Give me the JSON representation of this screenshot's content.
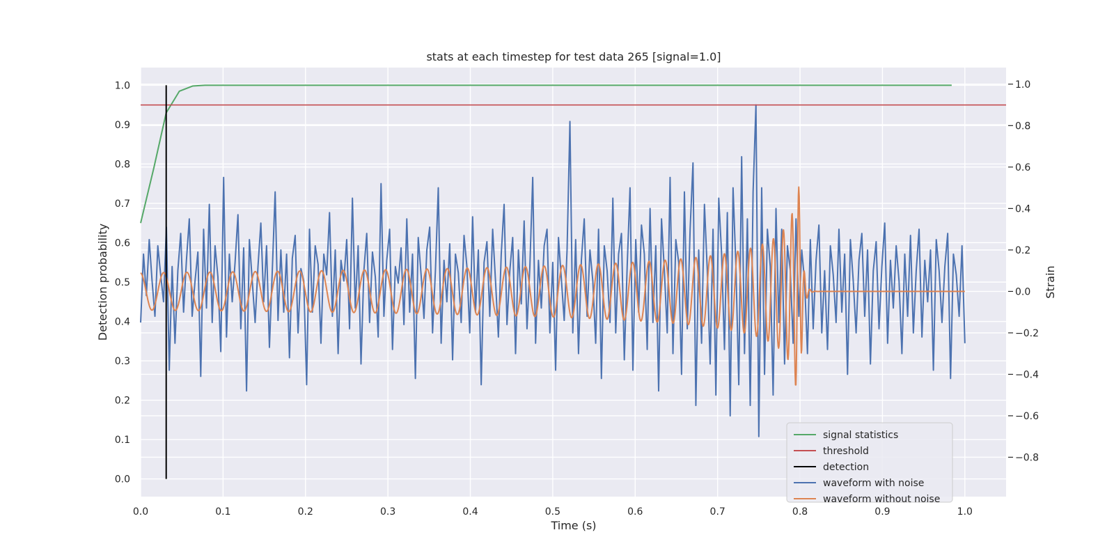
{
  "chart_data": {
    "type": "line",
    "title": "stats at each timestep for test data 265 [signal=1.0]",
    "xlabel": "Time (s)",
    "ylabel_left": "Detection probability",
    "ylabel_right": "Strain",
    "xlim": [
      0.0,
      1.05
    ],
    "ylim_left": [
      -0.045,
      1.045
    ],
    "ylim_right": [
      -0.99,
      1.08
    ],
    "x_ticks": [
      0.0,
      0.1,
      0.2,
      0.3,
      0.4,
      0.5,
      0.6,
      0.7,
      0.8,
      0.9,
      1.0
    ],
    "x_tick_labels": [
      "0.0",
      "0.1",
      "0.2",
      "0.3",
      "0.4",
      "0.5",
      "0.6",
      "0.7",
      "0.8",
      "0.9",
      "1.0"
    ],
    "y_ticks_left": [
      0.0,
      0.1,
      0.2,
      0.3,
      0.4,
      0.5,
      0.6,
      0.7,
      0.8,
      0.9,
      1.0
    ],
    "y_tick_labels_left": [
      "0.0",
      "0.1",
      "0.2",
      "0.3",
      "0.4",
      "0.5",
      "0.6",
      "0.7",
      "0.8",
      "0.9",
      "1.0"
    ],
    "y_ticks_right": [
      -0.8,
      -0.6,
      -0.4,
      -0.2,
      0.0,
      0.2,
      0.4,
      0.6,
      0.8,
      1.0
    ],
    "y_tick_labels_right": [
      "−0.8",
      "−0.6",
      "−0.4",
      "−0.2",
      "0.0",
      "0.2",
      "0.4",
      "0.6",
      "0.8",
      "1.0"
    ],
    "grid": true,
    "legend_position": "lower-right",
    "series": [
      {
        "name": "signal statistics",
        "axis": "left",
        "color": "#55a868",
        "x": [
          0.0,
          0.016,
          0.031,
          0.047,
          0.063,
          0.078,
          0.1,
          0.2,
          0.3,
          0.4,
          0.5,
          0.6,
          0.7,
          0.8,
          0.9,
          0.984
        ],
        "y": [
          0.65,
          0.79,
          0.93,
          0.985,
          0.998,
          1.0,
          1.0,
          1.0,
          1.0,
          1.0,
          1.0,
          1.0,
          1.0,
          1.0,
          1.0,
          1.0
        ]
      },
      {
        "name": "threshold",
        "axis": "left",
        "color": "#c44e52",
        "x": [
          0.0,
          1.05
        ],
        "y": [
          0.95,
          0.95
        ]
      },
      {
        "name": "detection",
        "axis": "left",
        "color": "#000000",
        "x": [
          0.031,
          0.031
        ],
        "y": [
          0.0,
          1.0
        ]
      },
      {
        "name": "waveform with noise",
        "axis": "right",
        "color": "#4c72b0",
        "x_range": [
          0.0,
          1.0
        ],
        "y": [
          -0.15,
          0.18,
          -0.02,
          0.25,
          0.05,
          -0.12,
          0.22,
          0.08,
          -0.05,
          0.31,
          -0.38,
          0.12,
          -0.25,
          0.1,
          0.28,
          -0.1,
          0.15,
          0.35,
          -0.12,
          0.05,
          0.19,
          -0.41,
          0.3,
          -0.08,
          0.42,
          -0.15,
          0.22,
          0.07,
          -0.29,
          0.55,
          -0.22,
          0.18,
          -0.05,
          0.14,
          0.37,
          -0.18,
          0.21,
          -0.48,
          0.25,
          0.05,
          -0.15,
          0.12,
          0.33,
          -0.05,
          0.22,
          -0.27,
          0.1,
          0.48,
          -0.14,
          0.2,
          -0.1,
          0.18,
          -0.32,
          0.16,
          0.27,
          -0.2,
          0.11,
          0.05,
          -0.45,
          0.3,
          -0.1,
          0.22,
          0.13,
          -0.25,
          0.18,
          0.08,
          0.38,
          -0.12,
          0.2,
          -0.3,
          0.15,
          0.05,
          0.25,
          -0.18,
          0.45,
          -0.08,
          0.22,
          -0.35,
          0.1,
          0.28,
          -0.15,
          0.19,
          0.07,
          -0.22,
          0.52,
          -0.12,
          0.15,
          0.3,
          -0.28,
          0.12,
          0.04,
          0.21,
          -0.16,
          0.35,
          -0.1,
          0.18,
          -0.42,
          0.26,
          0.08,
          -0.13,
          0.2,
          0.31,
          -0.2,
          0.1,
          0.5,
          -0.25,
          0.15,
          -0.05,
          0.23,
          -0.33,
          0.18,
          0.09,
          -0.15,
          0.27,
          0.12,
          -0.2,
          0.36,
          -0.1,
          0.2,
          -0.45,
          0.14,
          0.24,
          -0.12,
          0.3,
          0.05,
          -0.22,
          0.18,
          0.42,
          -0.16,
          0.1,
          0.26,
          -0.3,
          0.2,
          -0.06,
          0.34,
          -0.18,
          0.12,
          0.55,
          -0.25,
          0.15,
          -0.08,
          0.22,
          0.3,
          -0.2,
          0.14,
          -0.38,
          0.26,
          0.06,
          -0.14,
          0.2,
          0.82,
          -0.2,
          0.25,
          -0.3,
          0.15,
          0.35,
          -0.12,
          0.2,
          0.05,
          -0.25,
          0.3,
          -0.42,
          0.22,
          0.1,
          -0.15,
          0.45,
          -0.2,
          0.18,
          0.28,
          -0.33,
          0.12,
          0.5,
          -0.38,
          0.25,
          -0.1,
          0.32,
          0.18,
          -0.28,
          0.4,
          -0.15,
          0.22,
          -0.48,
          0.35,
          0.1,
          -0.2,
          0.55,
          -0.3,
          0.25,
          0.14,
          -0.4,
          0.48,
          -0.18,
          0.3,
          0.62,
          -0.55,
          0.2,
          -0.25,
          0.42,
          0.1,
          -0.35,
          0.3,
          -0.5,
          0.45,
          0.18,
          -0.28,
          0.38,
          -0.6,
          0.5,
          0.12,
          -0.45,
          0.65,
          -0.3,
          0.35,
          -0.55,
          0.48,
          0.9,
          -0.7,
          0.5,
          -0.4,
          0.3,
          0.12,
          -0.5,
          0.4,
          -0.15,
          0.3,
          -0.35,
          0.22,
          0.1,
          -0.25,
          0.35,
          -0.12,
          0.2,
          0.05,
          -0.3,
          0.25,
          -0.18,
          0.15,
          0.32,
          -0.2,
          0.1,
          -0.28,
          0.22,
          0.08,
          -0.15,
          0.3,
          -0.1,
          0.18,
          -0.4,
          0.25,
          0.05,
          -0.2,
          0.15,
          0.28,
          -0.12,
          0.2,
          -0.35,
          0.1,
          0.24,
          -0.18,
          0.12,
          0.33,
          -0.25,
          0.15,
          -0.08,
          0.22,
          0.05,
          -0.3,
          0.18,
          -0.12,
          0.27,
          -0.2,
          0.1,
          0.3,
          -0.22,
          0.15,
          -0.05,
          0.2,
          -0.38,
          0.25,
          0.1,
          -0.15,
          0.12,
          0.28,
          -0.42,
          0.18,
          0.08,
          -0.12,
          0.22,
          -0.25
        ]
      },
      {
        "name": "waveform without noise",
        "axis": "right",
        "color": "#dd8452",
        "x_range": [
          0.0,
          1.0
        ],
        "chirp": {
          "f_start_hz": 35,
          "f_merger_hz": 150,
          "t_merger_s": 0.8,
          "amp_start": 0.09,
          "amp_peak": 0.55
        }
      }
    ],
    "legend_entries": [
      {
        "label": "signal statistics",
        "color": "#55a868"
      },
      {
        "label": "threshold",
        "color": "#c44e52"
      },
      {
        "label": "detection",
        "color": "#000000"
      },
      {
        "label": "waveform with noise",
        "color": "#4c72b0"
      },
      {
        "label": "waveform without noise",
        "color": "#dd8452"
      }
    ]
  }
}
